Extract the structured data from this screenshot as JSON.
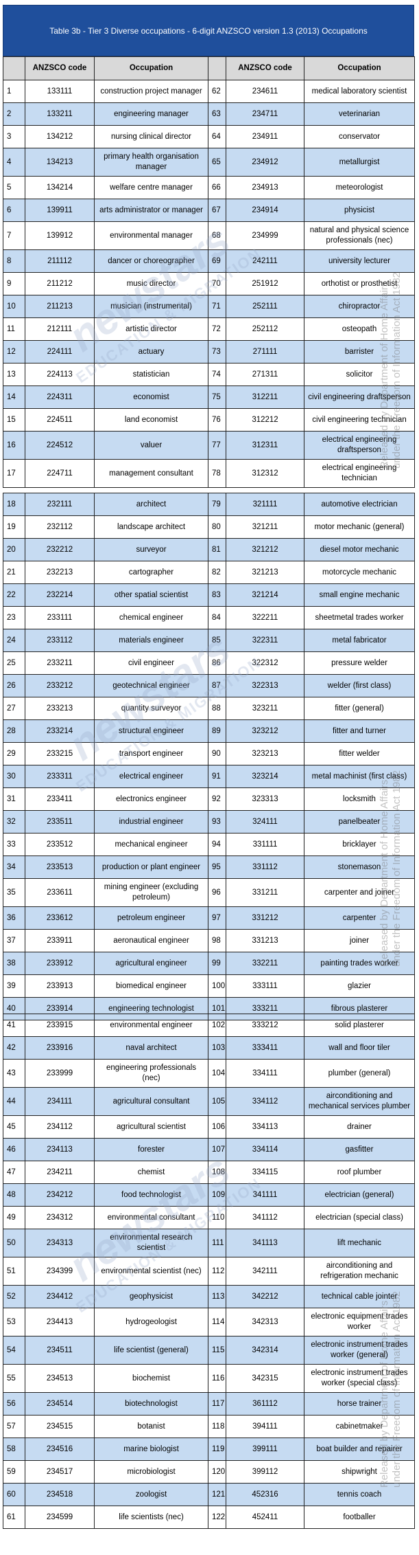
{
  "header": {
    "title": "Table 3b - Tier 3 Diverse occupations - 6-digit ANZSCO version 1.3 (2013) Occupations"
  },
  "columns": [
    "ANZSCO code",
    "Occupation"
  ],
  "watermark": [
    "Released by Department of Home Affairs",
    "under the Freedom of Information Act 1982"
  ],
  "logo": [
    "newstars",
    "EDUCATION & MIGRATION"
  ],
  "sections": [
    {
      "rows": [
        [
          1,
          133111,
          "construction project manager",
          62,
          234611,
          "medical laboratory scientist"
        ],
        [
          2,
          133211,
          "engineering manager",
          63,
          234711,
          "veterinarian"
        ],
        [
          3,
          134212,
          "nursing clinical director",
          64,
          234911,
          "conservator"
        ],
        [
          4,
          134213,
          "primary health organisation manager",
          65,
          234912,
          "metallurgist"
        ],
        [
          5,
          134214,
          "welfare centre manager",
          66,
          234913,
          "meteorologist"
        ],
        [
          6,
          139911,
          "arts administrator or manager",
          67,
          234914,
          "physicist"
        ],
        [
          7,
          139912,
          "environmental manager",
          68,
          234999,
          "natural and physical science professionals (nec)"
        ],
        [
          8,
          211112,
          "dancer or choreographer",
          69,
          242111,
          "university lecturer"
        ],
        [
          9,
          211212,
          "music director",
          70,
          251912,
          "orthotist or prosthetist"
        ],
        [
          10,
          211213,
          "musician (instrumental)",
          71,
          252111,
          "chiropractor"
        ],
        [
          11,
          212111,
          "artistic director",
          72,
          252112,
          "osteopath"
        ],
        [
          12,
          224111,
          "actuary",
          73,
          271111,
          "barrister"
        ],
        [
          13,
          224113,
          "statistician",
          74,
          271311,
          "solicitor"
        ],
        [
          14,
          224311,
          "economist",
          75,
          312211,
          "civil engineering draftsperson"
        ],
        [
          15,
          224511,
          "land economist",
          76,
          312212,
          "civil engineering technician"
        ],
        [
          16,
          224512,
          "valuer",
          77,
          312311,
          "electrical engineering draftsperson"
        ],
        [
          17,
          224711,
          "management consultant",
          78,
          312312,
          "electrical engineering technician"
        ]
      ]
    },
    {
      "rows": [
        [
          18,
          232111,
          "architect",
          79,
          321111,
          "automotive electrician"
        ],
        [
          19,
          232112,
          "landscape architect",
          80,
          321211,
          "motor mechanic (general)"
        ],
        [
          20,
          232212,
          "surveyor",
          81,
          321212,
          "diesel motor mechanic"
        ],
        [
          21,
          232213,
          "cartographer",
          82,
          321213,
          "motorcycle mechanic"
        ],
        [
          22,
          232214,
          "other spatial scientist",
          83,
          321214,
          "small engine mechanic"
        ],
        [
          23,
          233111,
          "chemical engineer",
          84,
          322211,
          "sheetmetal trades worker"
        ],
        [
          24,
          233112,
          "materials engineer",
          85,
          322311,
          "metal fabricator"
        ],
        [
          25,
          233211,
          "civil engineer",
          86,
          322312,
          "pressure welder"
        ],
        [
          26,
          233212,
          "geotechnical engineer",
          87,
          322313,
          "welder (first class)"
        ],
        [
          27,
          233213,
          "quantity surveyor",
          88,
          323211,
          "fitter (general)"
        ],
        [
          28,
          233214,
          "structural engineer",
          89,
          323212,
          "fitter and turner"
        ],
        [
          29,
          233215,
          "transport engineer",
          90,
          323213,
          "fitter welder"
        ],
        [
          30,
          233311,
          "electrical engineer",
          91,
          323214,
          "metal machinist (first class)"
        ],
        [
          31,
          233411,
          "electronics engineer",
          92,
          323313,
          "locksmith"
        ],
        [
          32,
          233511,
          "industrial engineer",
          93,
          324111,
          "panelbeater"
        ],
        [
          33,
          233512,
          "mechanical engineer",
          94,
          331111,
          "bricklayer"
        ],
        [
          34,
          233513,
          "production or plant engineer",
          95,
          331112,
          "stonemason"
        ],
        [
          35,
          233611,
          "mining engineer (excluding petroleum)",
          96,
          331211,
          "carpenter and joiner"
        ],
        [
          36,
          233612,
          "petroleum engineer",
          97,
          331212,
          "carpenter"
        ],
        [
          37,
          233911,
          "aeronautical engineer",
          98,
          331213,
          "joiner"
        ],
        [
          38,
          233912,
          "agricultural engineer",
          99,
          332211,
          "painting trades worker"
        ],
        [
          39,
          233913,
          "biomedical engineer",
          100,
          333111,
          "glazier"
        ],
        [
          40,
          233914,
          "engineering technologist",
          101,
          333211,
          "fibrous plasterer"
        ]
      ]
    },
    {
      "rows": [
        [
          41,
          233915,
          "environmental engineer",
          102,
          333212,
          "solid plasterer"
        ],
        [
          42,
          233916,
          "naval architect",
          103,
          333411,
          "wall and floor tiler"
        ],
        [
          43,
          233999,
          "engineering professionals (nec)",
          104,
          334111,
          "plumber (general)"
        ],
        [
          44,
          234111,
          "agricultural consultant",
          105,
          334112,
          "airconditioning and mechanical services plumber"
        ],
        [
          45,
          234112,
          "agricultural scientist",
          106,
          334113,
          "drainer"
        ],
        [
          46,
          234113,
          "forester",
          107,
          334114,
          "gasfitter"
        ],
        [
          47,
          234211,
          "chemist",
          108,
          334115,
          "roof plumber"
        ],
        [
          48,
          234212,
          "food technologist",
          109,
          341111,
          "electrician (general)"
        ],
        [
          49,
          234312,
          "environmental consultant",
          110,
          341112,
          "electrician (special class)"
        ],
        [
          50,
          234313,
          "environmental research scientist",
          111,
          341113,
          "lift mechanic"
        ],
        [
          51,
          234399,
          "environmental scientist (nec)",
          112,
          342111,
          "airconditioning and refrigeration mechanic"
        ],
        [
          52,
          234412,
          "geophysicist",
          113,
          342212,
          "technical cable jointer"
        ],
        [
          53,
          234413,
          "hydrogeologist",
          114,
          342313,
          "electronic equipment trades worker"
        ],
        [
          54,
          234511,
          "life scientist (general)",
          115,
          342314,
          "electronic instrument trades worker (general)"
        ],
        [
          55,
          234513,
          "biochemist",
          116,
          342315,
          "electronic instrument trades worker (special class)"
        ],
        [
          56,
          234514,
          "biotechnologist",
          117,
          361112,
          "horse trainer"
        ],
        [
          57,
          234515,
          "botanist",
          118,
          394111,
          "cabinetmaker"
        ],
        [
          58,
          234516,
          "marine biologist",
          119,
          399111,
          "boat builder and repairer"
        ],
        [
          59,
          234517,
          "microbiologist",
          120,
          399112,
          "shipwright"
        ],
        [
          60,
          234518,
          "zoologist",
          121,
          452316,
          "tennis coach"
        ],
        [
          61,
          234599,
          "life scientists (nec)",
          122,
          452411,
          "footballer"
        ]
      ]
    }
  ]
}
